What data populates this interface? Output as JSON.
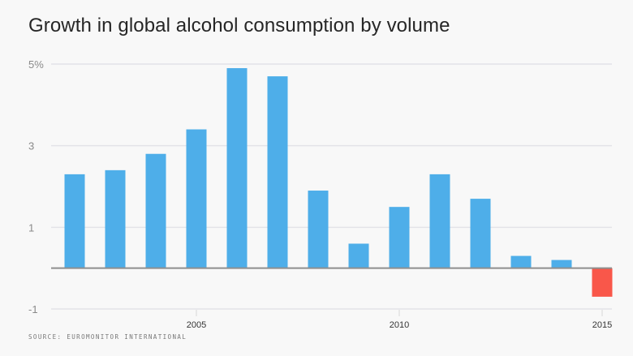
{
  "chart_data": {
    "type": "bar",
    "title": "Growth in global alcohol consumption by volume",
    "source": "SOURCE: EUROMONITOR INTERNATIONAL",
    "xlabel": "",
    "ylabel": "",
    "categories": [
      "2002",
      "2003",
      "2004",
      "2005",
      "2006",
      "2007",
      "2008",
      "2009",
      "2010",
      "2011",
      "2012",
      "2013",
      "2014",
      "2015"
    ],
    "values": [
      2.3,
      2.4,
      2.8,
      3.4,
      4.9,
      4.7,
      1.9,
      0.6,
      1.5,
      2.3,
      1.7,
      0.3,
      0.2,
      -0.7
    ],
    "ylim": [
      -1,
      5
    ],
    "yticks": [
      5,
      3,
      1,
      -1
    ],
    "ytick_labels": [
      "5%",
      "3",
      "1",
      "-1"
    ],
    "xticks": [
      "2005",
      "2010",
      "2015"
    ],
    "grid": true,
    "colors": {
      "positive": "#4eaee9",
      "negative": "#f9574a",
      "grid": "#e3e3e8",
      "zero_line": "#8e8e8e"
    }
  }
}
